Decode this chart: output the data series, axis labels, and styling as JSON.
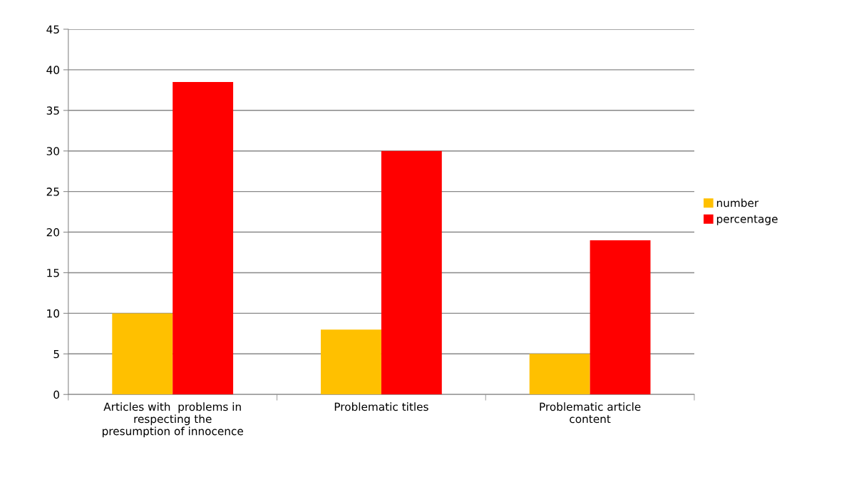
{
  "chart_data": {
    "type": "bar",
    "categories": [
      "Articles with  problems in\nrespecting the\npresumption of innocence",
      "Problematic titles",
      "Problematic article\ncontent"
    ],
    "series": [
      {
        "name": "number",
        "color": "#ffc000",
        "values": [
          10,
          8,
          5
        ]
      },
      {
        "name": "percentage",
        "color": "#ff0000",
        "values": [
          38.5,
          30,
          19
        ]
      }
    ],
    "ylim": [
      0,
      45
    ],
    "yticks": [
      0,
      5,
      10,
      15,
      20,
      25,
      30,
      35,
      40,
      45
    ],
    "grid": "y",
    "legend": "right"
  }
}
